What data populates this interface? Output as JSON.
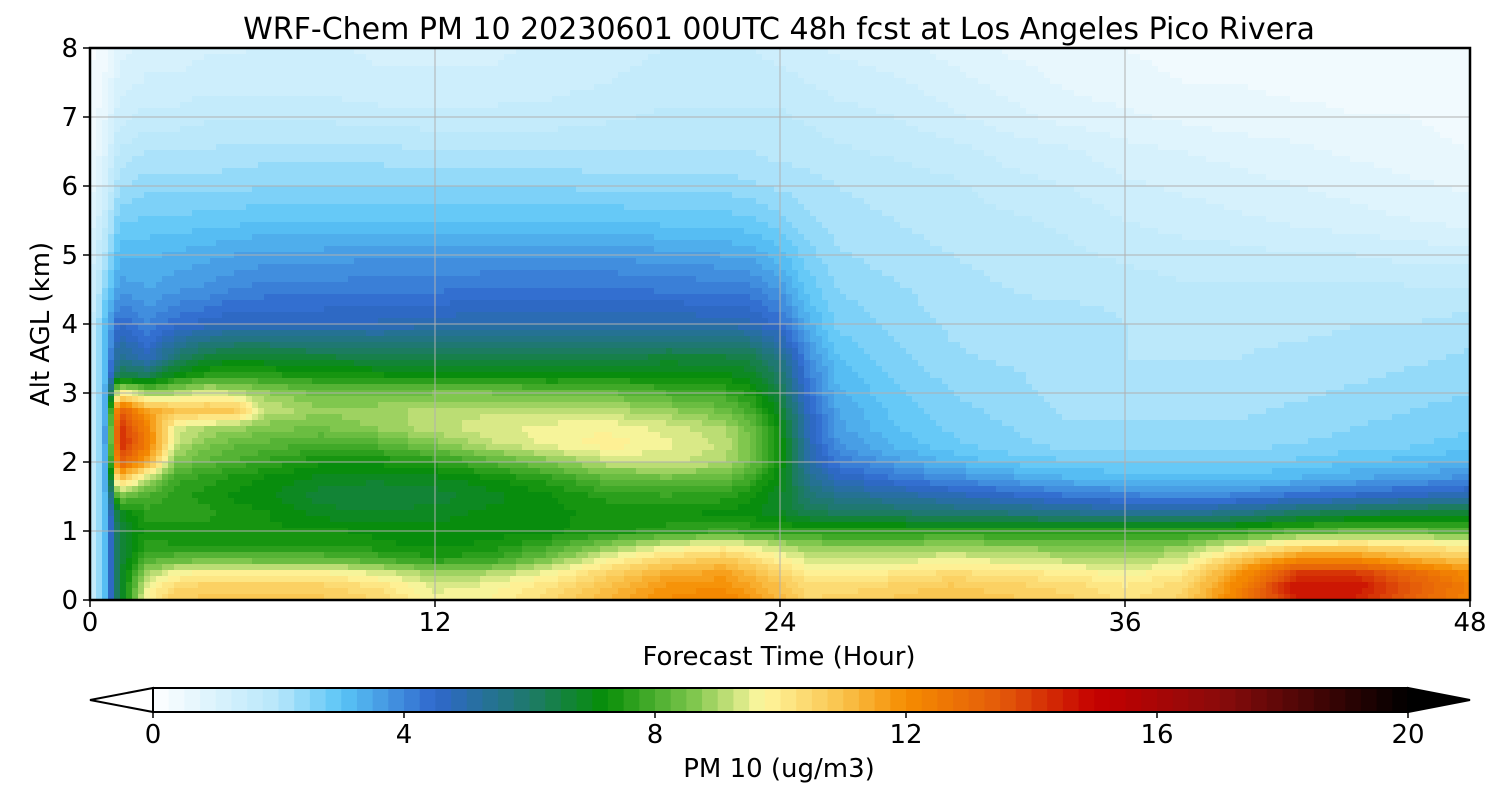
{
  "chart_data": {
    "type": "heatmap",
    "title": "WRF-Chem PM 10  20230601 00UTC 48h fcst at Los Angeles Pico Rivera",
    "xlabel": "Forecast Time (Hour)",
    "ylabel": "Alt AGL (km)",
    "xlim": [
      0,
      48
    ],
    "ylim": [
      0,
      8
    ],
    "xticks": [
      "0",
      "12",
      "24",
      "36",
      "48"
    ],
    "yticks": [
      "0",
      "1",
      "2",
      "3",
      "4",
      "5",
      "6",
      "7",
      "8"
    ],
    "grid": true,
    "colorbar": {
      "label": "PM 10  (ug/m3)",
      "range": [
        0,
        20
      ],
      "ticks": [
        "0",
        "4",
        "8",
        "12",
        "16",
        "20"
      ],
      "extend": "both",
      "colors": [
        {
          "v": 0,
          "c": "#ffffff"
        },
        {
          "v": 2,
          "c": "#b6e6fa"
        },
        {
          "v": 3,
          "c": "#5ac5f7"
        },
        {
          "v": 4.5,
          "c": "#2f67cc"
        },
        {
          "v": 6,
          "c": "#1e7a6a"
        },
        {
          "v": 7.2,
          "c": "#078e07"
        },
        {
          "v": 8.6,
          "c": "#7dc64c"
        },
        {
          "v": 9.7,
          "c": "#fff7a0"
        },
        {
          "v": 11,
          "c": "#f9c24a"
        },
        {
          "v": 12,
          "c": "#f58c00"
        },
        {
          "v": 13.5,
          "c": "#e35a0a"
        },
        {
          "v": 15,
          "c": "#c60000"
        },
        {
          "v": 17,
          "c": "#8a0b0b"
        },
        {
          "v": 20,
          "c": "#000000"
        }
      ]
    },
    "hours": [
      0,
      0.5,
      1,
      2,
      3,
      4,
      5,
      6,
      8,
      10,
      12,
      14,
      16,
      18,
      20,
      22,
      23,
      24,
      25,
      26,
      28,
      30,
      32,
      34,
      36,
      38,
      40,
      42,
      44,
      46,
      48
    ],
    "altitudes_km": [
      0,
      0.2,
      0.4,
      0.6,
      0.8,
      1,
      1.25,
      1.5,
      1.75,
      2,
      2.25,
      2.5,
      2.75,
      3,
      3.25,
      3.5,
      4,
      4.5,
      5,
      5.5,
      6,
      6.5,
      7,
      7.5,
      8
    ],
    "values": [
      [
        1.2,
        3,
        6.5,
        9.8,
        10.8,
        10.8,
        10.8,
        10.8,
        10.8,
        10.5,
        9.6,
        9.8,
        10.4,
        11.2,
        12,
        12.3,
        11.8,
        11.2,
        10.5,
        10.6,
        10.8,
        11,
        10.8,
        10.6,
        10.2,
        10.6,
        12.5,
        14.5,
        14.5,
        13.3,
        12.2
      ],
      [
        1.2,
        3,
        6.5,
        9.6,
        10.4,
        10.6,
        10.6,
        10.6,
        10.6,
        10.2,
        9.4,
        9.6,
        10.2,
        11,
        11.8,
        12,
        11.5,
        11,
        10.3,
        10.3,
        10.6,
        10.8,
        10.6,
        10.4,
        10,
        10.4,
        12.3,
        14.8,
        14.8,
        13.5,
        12.4
      ],
      [
        1.2,
        3,
        6.5,
        8.9,
        9.6,
        9.8,
        9.8,
        9.8,
        9.8,
        9.4,
        8.8,
        9,
        9.6,
        10.5,
        11.3,
        11.6,
        11.1,
        10.5,
        9.9,
        9.8,
        10,
        10.3,
        10.1,
        9.9,
        9.6,
        10,
        11.8,
        14,
        14,
        13,
        12
      ],
      [
        1.2,
        3,
        6.5,
        8,
        8.2,
        8.3,
        8.3,
        8.2,
        8.2,
        7.9,
        7.5,
        7.7,
        8.5,
        9.6,
        10.4,
        10.8,
        10.4,
        9.8,
        9.3,
        9.2,
        9.3,
        9.5,
        9.3,
        9.1,
        8.9,
        9.3,
        10.8,
        12,
        12,
        11.3,
        10.8
      ],
      [
        1.2,
        3,
        6.5,
        7.6,
        7.5,
        7.5,
        7.5,
        7.5,
        7.5,
        7.3,
        7.2,
        7.3,
        7.8,
        8.6,
        9.3,
        9.7,
        9.4,
        9,
        8.7,
        8.6,
        8.6,
        8.7,
        8.6,
        8.5,
        8.5,
        8.6,
        9.4,
        10.2,
        10.3,
        10.1,
        9.8
      ],
      [
        1.2,
        3,
        6.5,
        7.4,
        7.3,
        7.4,
        7.3,
        7.3,
        7.3,
        7.2,
        7.1,
        7.1,
        7.2,
        7.4,
        7.6,
        7.8,
        7.7,
        7.6,
        7.5,
        7.5,
        7.5,
        7.5,
        7.5,
        7.5,
        7.5,
        7.5,
        7.7,
        8.1,
        8.3,
        8.3,
        8.1
      ],
      [
        1.2,
        3,
        6.8,
        7.6,
        7.6,
        7.6,
        7.4,
        7.3,
        6.9,
        6.8,
        6.9,
        7.1,
        7.2,
        7.3,
        7.3,
        7.2,
        7.1,
        6.8,
        6.4,
        6.2,
        6.1,
        5.9,
        5.8,
        5.6,
        5.4,
        5.4,
        5.7,
        6.2,
        6.5,
        6.7,
        6.8
      ],
      [
        1.2,
        3,
        8.5,
        8,
        7.6,
        7.4,
        7.2,
        7.1,
        6.6,
        6.5,
        6.6,
        6.9,
        7.2,
        7.6,
        7.7,
        7.6,
        7.3,
        6.8,
        5.9,
        5.5,
        5.2,
        4.9,
        4.6,
        4.3,
        4.1,
        4,
        4.1,
        4.4,
        4.6,
        4.8,
        5
      ],
      [
        1.2,
        3,
        11,
        9,
        7.8,
        7.6,
        7.4,
        7.2,
        6.9,
        6.8,
        6.9,
        7.2,
        7.6,
        8.2,
        8.4,
        8.3,
        7.8,
        7,
        5.5,
        4.8,
        4.3,
        3.9,
        3.6,
        3.3,
        3.2,
        3.1,
        3.1,
        3.3,
        3.5,
        3.7,
        3.9
      ],
      [
        1.2,
        3,
        13.5,
        11.5,
        8.6,
        8.2,
        8,
        7.7,
        7.3,
        7.3,
        7.6,
        8.1,
        8.6,
        9.2,
        9.3,
        9.1,
        8.4,
        7.3,
        5.1,
        4.2,
        3.6,
        3.2,
        2.9,
        2.8,
        2.7,
        2.7,
        2.7,
        2.8,
        3,
        3.1,
        3.3
      ],
      [
        1.2,
        3,
        14.5,
        12.5,
        9.2,
        8.6,
        8.3,
        8.2,
        7.9,
        8.1,
        8.6,
        9.2,
        9.6,
        9.9,
        9.6,
        9.2,
        8.5,
        7.3,
        4.9,
        3.8,
        3.2,
        2.8,
        2.6,
        2.4,
        2.4,
        2.4,
        2.4,
        2.5,
        2.6,
        2.7,
        2.9
      ],
      [
        1.2,
        3,
        14.5,
        12.2,
        9.5,
        9,
        8.9,
        8.6,
        8.5,
        8.8,
        9.2,
        9.4,
        9.6,
        9.7,
        9.4,
        9,
        8.4,
        7.2,
        4.8,
        3.6,
        3,
        2.7,
        2.5,
        2.3,
        2.3,
        2.3,
        2.3,
        2.4,
        2.5,
        2.6,
        2.7
      ],
      [
        1.2,
        3,
        13.5,
        11.5,
        11,
        11,
        11,
        9.3,
        8.8,
        8.9,
        9.1,
        9.2,
        9.2,
        9.1,
        8.8,
        8.4,
        7.9,
        6.8,
        4.6,
        3.5,
        2.9,
        2.6,
        2.4,
        2.2,
        2.2,
        2.2,
        2.2,
        2.3,
        2.4,
        2.5,
        2.6
      ],
      [
        1.2,
        3,
        10,
        8.8,
        9,
        9.4,
        9.2,
        8.8,
        8.4,
        8.4,
        8.5,
        8.5,
        8.4,
        8.3,
        8,
        7.8,
        7.4,
        6.4,
        4.3,
        3.3,
        2.8,
        2.5,
        2.3,
        2.2,
        2.1,
        2.1,
        2.1,
        2.2,
        2.3,
        2.4,
        2.5
      ],
      [
        1.2,
        3,
        6.5,
        6.2,
        7.2,
        7.6,
        7.8,
        7.6,
        7.4,
        7.3,
        7.2,
        7.2,
        7.1,
        7.2,
        7.2,
        7.1,
        6.9,
        6,
        4.1,
        3.2,
        2.7,
        2.4,
        2.3,
        2.1,
        2.1,
        2.1,
        2.1,
        2.1,
        2.2,
        2.3,
        2.4
      ],
      [
        1.2,
        3,
        5.5,
        4.8,
        6,
        6.6,
        6.8,
        6.8,
        6.6,
        6.5,
        6.4,
        6.4,
        6.4,
        6.5,
        6.6,
        6.6,
        6.4,
        5.6,
        3.9,
        3,
        2.6,
        2.3,
        2.2,
        2.1,
        2,
        2,
        2,
        2.1,
        2.1,
        2.2,
        2.3
      ],
      [
        1.2,
        3,
        4.5,
        4,
        4.4,
        4.6,
        4.8,
        4.8,
        4.8,
        4.8,
        4.9,
        5,
        5,
        5,
        5,
        4.9,
        4.8,
        4.4,
        3.3,
        2.7,
        2.4,
        2.2,
        2.1,
        2.2,
        2,
        1.9,
        1.9,
        1.9,
        2,
        2,
        2.1
      ],
      [
        1.1,
        2.5,
        3.7,
        3.5,
        3.7,
        3.8,
        4,
        4.1,
        4.1,
        4.2,
        4.2,
        4.3,
        4.3,
        4.3,
        4.2,
        4.2,
        4.1,
        3.7,
        2.9,
        2.5,
        2.3,
        2.1,
        2,
        1.9,
        1.9,
        1.8,
        1.8,
        1.8,
        1.8,
        1.8,
        1.8
      ],
      [
        1,
        2,
        3.2,
        3.2,
        3.3,
        3.4,
        3.5,
        3.6,
        3.6,
        3.7,
        3.7,
        3.7,
        3.7,
        3.7,
        3.6,
        3.5,
        3.4,
        3.1,
        2.6,
        2.3,
        2.1,
        2,
        1.9,
        1.8,
        1.7,
        1.6,
        1.6,
        1.5,
        1.5,
        1.4,
        1.4
      ],
      [
        0.8,
        1.6,
        2.7,
        2.8,
        2.8,
        2.9,
        2.9,
        3,
        3,
        3,
        3,
        3,
        3,
        3,
        2.9,
        2.9,
        2.8,
        2.6,
        2.3,
        2.1,
        2,
        1.9,
        1.8,
        1.7,
        1.5,
        1.4,
        1.3,
        1.2,
        1.1,
        1,
        0.9
      ],
      [
        0.6,
        1.2,
        2.2,
        2.4,
        2.4,
        2.4,
        2.4,
        2.5,
        2.5,
        2.5,
        2.5,
        2.5,
        2.5,
        2.4,
        2.4,
        2.4,
        2.3,
        2.2,
        2.1,
        2,
        1.9,
        1.8,
        1.6,
        1.5,
        1.3,
        1.2,
        1.1,
        1,
        0.9,
        0.8,
        0.7
      ],
      [
        0.4,
        0.9,
        1.8,
        2,
        2,
        2,
        2.1,
        2.1,
        2.1,
        2.1,
        2,
        2,
        2,
        2,
        2,
        2,
        2,
        1.9,
        1.9,
        1.8,
        1.7,
        1.6,
        1.4,
        1.3,
        1.1,
        1,
        0.9,
        0.8,
        0.7,
        0.6,
        0.5
      ],
      [
        0.3,
        0.7,
        1.4,
        1.6,
        1.6,
        1.7,
        1.7,
        1.7,
        1.7,
        1.6,
        1.6,
        1.6,
        1.6,
        1.7,
        1.8,
        1.8,
        1.8,
        1.8,
        1.7,
        1.6,
        1.5,
        1.3,
        1.1,
        0.9,
        0.8,
        0.7,
        0.6,
        0.6,
        0.5,
        0.5,
        0.4
      ],
      [
        0.2,
        0.5,
        1.1,
        1.3,
        1.3,
        1.4,
        1.4,
        1.4,
        1.4,
        1.3,
        1.3,
        1.3,
        1.4,
        1.5,
        1.6,
        1.6,
        1.6,
        1.6,
        1.5,
        1.4,
        1.3,
        1.1,
        0.9,
        0.7,
        0.6,
        0.5,
        0.5,
        0.4,
        0.4,
        0.4,
        0.3
      ],
      [
        0.2,
        0.4,
        0.9,
        1.1,
        1.1,
        1.2,
        1.2,
        1.3,
        1.3,
        1.2,
        1.2,
        1.2,
        1.3,
        1.4,
        1.5,
        1.5,
        1.5,
        1.4,
        1.3,
        1.2,
        1.1,
        0.9,
        0.7,
        0.6,
        0.5,
        0.4,
        0.4,
        0.3,
        0.3,
        0.3,
        0.3
      ]
    ]
  }
}
